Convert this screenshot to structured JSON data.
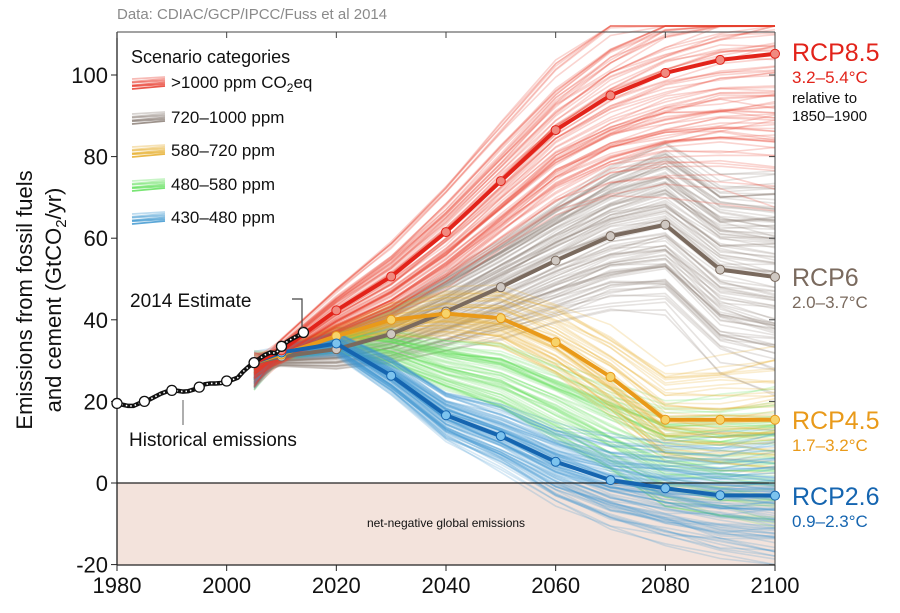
{
  "chart_data": {
    "type": "line",
    "source_note": "Data: CDIAC/GCP/IPCC/Fuss et al 2014",
    "ylabel_line1": "Emissions from fossil fuels",
    "ylabel_line2": "and cement (GtCO",
    "ylabel_sub": "2",
    "ylabel_end": "/yr)",
    "xlim": [
      1980,
      2100
    ],
    "ylim": [
      -20,
      110
    ],
    "x_ticks": [
      "1980",
      "2000",
      "2020",
      "2040",
      "2060",
      "2080",
      "2100"
    ],
    "y_ticks": [
      "-20",
      "0",
      "20",
      "40",
      "60",
      "80",
      "100"
    ],
    "legend": {
      "title": "Scenario categories",
      "placement": "top-left",
      "items": [
        {
          "label": ">1000 ppm CO",
          "sub": "2",
          "suffix": "eq",
          "color": "#e8392b"
        },
        {
          "label": "720–1000 ppm",
          "sub": "",
          "suffix": "",
          "color": "#8c8078"
        },
        {
          "label": "580–720 ppm",
          "sub": "",
          "suffix": "",
          "color": "#e6ad2a"
        },
        {
          "label": "480–580 ppm",
          "sub": "",
          "suffix": "",
          "color": "#62e05c"
        },
        {
          "label": "430–480 ppm",
          "sub": "",
          "suffix": "",
          "color": "#3f98d0"
        }
      ]
    },
    "historical": {
      "label": "Historical emissions",
      "estimate_label": "2014 Estimate",
      "x": [
        1980,
        1981,
        1982,
        1983,
        1984,
        1985,
        1986,
        1987,
        1988,
        1989,
        1990,
        1991,
        1992,
        1993,
        1994,
        1995,
        1996,
        1997,
        1998,
        1999,
        2000,
        2001,
        2002,
        2003,
        2004,
        2005,
        2006,
        2007,
        2008,
        2009,
        2010,
        2011,
        2012,
        2013,
        2014
      ],
      "y": [
        19.5,
        19.2,
        18.9,
        18.9,
        19.5,
        20.0,
        20.5,
        21.2,
        21.9,
        22.4,
        22.7,
        22.6,
        22.4,
        22.5,
        22.9,
        23.5,
        24.2,
        24.4,
        24.4,
        24.5,
        25.0,
        25.3,
        25.8,
        27.3,
        28.5,
        29.5,
        30.5,
        31.4,
        32.0,
        31.8,
        33.5,
        34.6,
        35.4,
        36.1,
        36.9
      ],
      "marked_years": [
        1980,
        1985,
        1990,
        1995,
        2000,
        2005,
        2010,
        2014
      ]
    },
    "series": [
      {
        "name": "RCP8.5",
        "range": "3.2–5.4°C",
        "color": "#e2231a",
        "dot": "#f08a80",
        "x": [
          2005,
          2010,
          2020,
          2030,
          2040,
          2050,
          2060,
          2070,
          2080,
          2090,
          2100
        ],
        "y": [
          29.5,
          32.5,
          42.3,
          50.6,
          61.5,
          74.0,
          86.5,
          95.0,
          100.5,
          103.7,
          105.2
        ]
      },
      {
        "name": "RCP6",
        "range": "2.0–3.7°C",
        "color": "#7a6a5e",
        "dot": "#cfc8c2",
        "x": [
          2005,
          2010,
          2020,
          2030,
          2040,
          2050,
          2060,
          2070,
          2080,
          2090,
          2100
        ],
        "y": [
          29.5,
          31.0,
          32.8,
          36.5,
          42.0,
          48.0,
          54.5,
          60.5,
          63.3,
          52.3,
          50.5
        ]
      },
      {
        "name": "RCP4.5",
        "range": "1.7–3.2°C",
        "color": "#e99a1a",
        "dot": "#f7d36a",
        "x": [
          2005,
          2010,
          2020,
          2030,
          2040,
          2050,
          2060,
          2070,
          2080,
          2090,
          2100
        ],
        "y": [
          29.5,
          31.5,
          36.0,
          40.0,
          41.5,
          40.4,
          34.5,
          26.0,
          15.5,
          15.5,
          15.5
        ]
      },
      {
        "name": "RCP2.6",
        "range": "0.9–2.3°C",
        "color": "#1565b0",
        "dot": "#7cc3ee",
        "x": [
          2005,
          2010,
          2020,
          2030,
          2040,
          2050,
          2060,
          2070,
          2080,
          2090,
          2100
        ],
        "y": [
          29.5,
          32.0,
          34.2,
          26.3,
          16.6,
          11.5,
          5.2,
          0.7,
          -1.3,
          -3.0,
          -3.1
        ]
      }
    ],
    "annotations": {
      "relative_line1": "relative to",
      "relative_line2": "1850–1900",
      "negative_region": "net-negative global emissions",
      "negative_fill": "#f3e3dc"
    },
    "grid": false
  }
}
